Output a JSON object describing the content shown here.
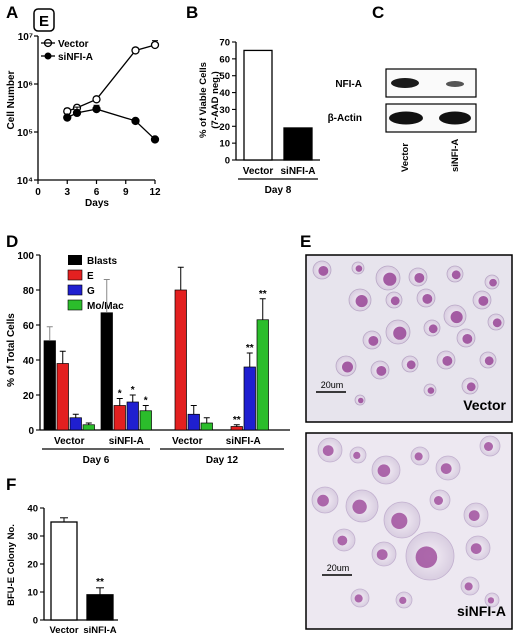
{
  "figure": {
    "panel_labels": [
      "A",
      "B",
      "C",
      "D",
      "E",
      "F"
    ],
    "boxed_label": "E"
  },
  "panel_a": {
    "chart_data": {
      "type": "line",
      "ylabel": "Cell Number",
      "xlabel": "Days",
      "y_log": true,
      "ylim": [
        10000,
        10000000
      ],
      "xlim": [
        0,
        12
      ],
      "x_ticks": [
        "0",
        "3",
        "6",
        "9",
        "12"
      ],
      "y_ticks": [
        "10^4",
        "10^5",
        "10^6",
        "10^7"
      ],
      "series": [
        {
          "name": "Vector",
          "marker": "open-circle",
          "x": [
            3,
            4,
            6,
            10,
            12
          ],
          "values": [
            270000,
            320000,
            480000,
            5000000,
            6500000
          ],
          "err": [
            40000,
            40000,
            60000,
            700000,
            1500000
          ]
        },
        {
          "name": "siNFI-A",
          "marker": "filled-circle",
          "x": [
            3,
            4,
            6,
            10,
            12
          ],
          "values": [
            200000,
            250000,
            300000,
            170000,
            70000
          ],
          "err": [
            20000,
            80000,
            60000,
            10000,
            5000
          ]
        }
      ]
    }
  },
  "panel_b": {
    "chart_data": {
      "type": "bar",
      "ylabel_lines": [
        "% of Viable Cells",
        "(7-AAD neg.)"
      ],
      "categories": [
        "Vector",
        "siNFI-A"
      ],
      "values": [
        65,
        19
      ],
      "bar_fill": [
        "#ffffff",
        "#000000"
      ],
      "ylim": [
        0,
        70
      ],
      "y_ticks": [
        0,
        10,
        20,
        30,
        40,
        50,
        60,
        70
      ],
      "group_label": "Day 8"
    }
  },
  "panel_c": {
    "row_labels": [
      "NFI-A",
      "β-Actin"
    ],
    "lane_labels": [
      "Vector",
      "siNFI-A"
    ]
  },
  "panel_d": {
    "chart_data": {
      "type": "bar",
      "ylabel": "% of Total Cells",
      "ylim": [
        0,
        100
      ],
      "y_ticks": [
        0,
        20,
        40,
        60,
        80,
        100
      ],
      "legend": [
        {
          "name": "Blasts",
          "color": "#000000"
        },
        {
          "name": "E",
          "color": "#e32020"
        },
        {
          "name": "G",
          "color": "#1f1fd0"
        },
        {
          "name": "Mo/Mac",
          "color": "#2bbd2b"
        }
      ],
      "groups": [
        {
          "day": "Day 6",
          "condition": "Vector",
          "values": [
            51,
            38,
            7,
            3
          ],
          "err": [
            8,
            7,
            2,
            1
          ],
          "sig": [
            "",
            "",
            "",
            ""
          ]
        },
        {
          "day": "Day 6",
          "condition": "siNFI-A",
          "values": [
            67,
            14,
            16,
            11
          ],
          "err": [
            19,
            4,
            4,
            3
          ],
          "sig": [
            "",
            "*",
            "*",
            "*"
          ]
        },
        {
          "day": "Day 12",
          "condition": "Vector",
          "values": [
            0,
            80,
            9,
            4
          ],
          "err": [
            0,
            13,
            5,
            3
          ],
          "sig": [
            "",
            "",
            "",
            ""
          ]
        },
        {
          "day": "Day 12",
          "condition": "siNFI-A",
          "values": [
            0,
            2,
            36,
            63
          ],
          "err": [
            0,
            1,
            8,
            12
          ],
          "sig": [
            "",
            "**",
            "**",
            "**"
          ]
        }
      ],
      "day_labels": [
        "Day 6",
        "Day 12"
      ]
    }
  },
  "panel_e": {
    "top": {
      "label": "Vector",
      "scale_bar": "20um"
    },
    "bottom": {
      "label": "siNFI-A",
      "scale_bar": "20um"
    }
  },
  "panel_f": {
    "chart_data": {
      "type": "bar",
      "ylabel": "BFU-E Colony No.",
      "categories": [
        "Vector",
        "siNFI-A"
      ],
      "values": [
        35,
        9
      ],
      "err": [
        1.5,
        2.5
      ],
      "bar_fill": [
        "#ffffff",
        "#000000"
      ],
      "ylim": [
        0,
        40
      ],
      "y_ticks": [
        0,
        10,
        20,
        30,
        40
      ],
      "sig": [
        "",
        "**"
      ]
    }
  }
}
